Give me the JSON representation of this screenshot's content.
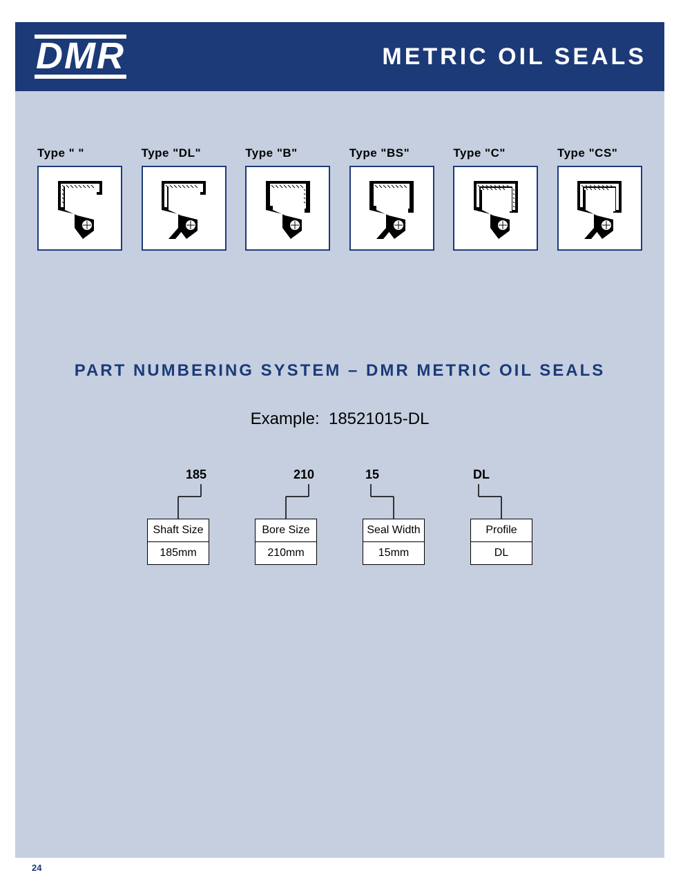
{
  "header": {
    "logo": "DMR",
    "title": "METRIC OIL SEALS"
  },
  "types": [
    {
      "label": "Type \" \"",
      "profile": "single_metal"
    },
    {
      "label": "Type \"DL\"",
      "profile": "single_metal_dust"
    },
    {
      "label": "Type \"B\"",
      "profile": "rubber_od"
    },
    {
      "label": "Type \"BS\"",
      "profile": "rubber_od_dust"
    },
    {
      "label": "Type \"C\"",
      "profile": "double_metal"
    },
    {
      "label": "Type \"CS\"",
      "profile": "double_metal_dust"
    }
  ],
  "section_title": "PART NUMBERING SYSTEM – DMR METRIC OIL SEALS",
  "example_label": "Example:",
  "example_number": "18521015-DL",
  "part_number": {
    "segments": [
      {
        "code": "185",
        "name": "Shaft Size",
        "value": "185mm",
        "align": "right"
      },
      {
        "code": "210",
        "name": "Bore Size",
        "value": "210mm",
        "align": "right"
      },
      {
        "code": "15",
        "name": "Seal Width",
        "value": "15mm",
        "align": "left"
      },
      {
        "code": "DL",
        "name": "Profile",
        "value": "DL",
        "align": "left"
      }
    ]
  },
  "colors": {
    "brand_blue": "#1c3a78",
    "page_bg": "#c5cfe0",
    "white": "#ffffff",
    "black": "#000000"
  },
  "page_number": "24"
}
